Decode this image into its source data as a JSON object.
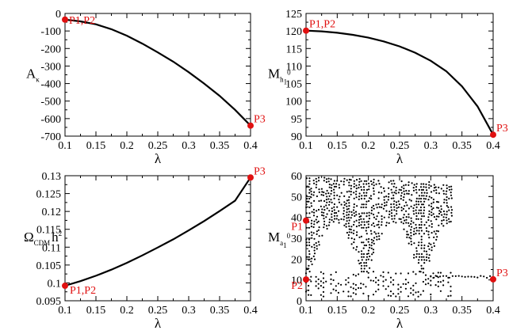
{
  "chart_data": [
    {
      "type": "line",
      "xlabel": "λ",
      "ylabel": "A",
      "ylabel_sub": "κ",
      "xlim": [
        0.1,
        0.4
      ],
      "ylim": [
        -700,
        0
      ],
      "xticks": [
        "0.1",
        "0.15",
        "0.2",
        "0.25",
        "0.3",
        "0.35",
        "0.4"
      ],
      "yticks": [
        "0",
        "-100",
        "-200",
        "-300",
        "-400",
        "-500",
        "-600",
        "-700"
      ],
      "ytick_values": [
        0,
        -100,
        -200,
        -300,
        -400,
        -500,
        -600,
        -700
      ],
      "series": [
        {
          "x": [
            0.1,
            0.125,
            0.15,
            0.175,
            0.2,
            0.225,
            0.25,
            0.275,
            0.3,
            0.325,
            0.35,
            0.375,
            0.4
          ],
          "y": [
            -35,
            -45,
            -62,
            -90,
            -127,
            -172,
            -222,
            -275,
            -335,
            -400,
            -470,
            -550,
            -640
          ]
        }
      ],
      "points": [
        {
          "label": "P1,P2",
          "x": 0.1,
          "y": -35,
          "label_pos": "right"
        },
        {
          "label": "P3",
          "x": 0.4,
          "y": -640,
          "label_pos": "above-right"
        }
      ]
    },
    {
      "type": "line",
      "xlabel": "λ",
      "ylabel": "M",
      "ylabel_sub": "h",
      "ylabel_sub2": "1",
      "ylabel_sup": "0",
      "xlim": [
        0.1,
        0.4
      ],
      "ylim": [
        90,
        125
      ],
      "xticks": [
        "0.1",
        "0.15",
        "0.2",
        "0.25",
        "0.3",
        "0.35",
        "0.4"
      ],
      "yticks": [
        "90",
        "95",
        "100",
        "105",
        "110",
        "115",
        "120",
        "125"
      ],
      "ytick_values": [
        90,
        95,
        100,
        105,
        110,
        115,
        120,
        125
      ],
      "series": [
        {
          "x": [
            0.1,
            0.125,
            0.15,
            0.175,
            0.2,
            0.225,
            0.25,
            0.275,
            0.3,
            0.325,
            0.35,
            0.375,
            0.4
          ],
          "y": [
            120.1,
            119.9,
            119.5,
            118.9,
            118.1,
            117.0,
            115.6,
            113.8,
            111.5,
            108.5,
            104.2,
            98.5,
            90.4
          ]
        }
      ],
      "points": [
        {
          "label": "P1,P2",
          "x": 0.1,
          "y": 120.1,
          "label_pos": "above-right"
        },
        {
          "label": "P3",
          "x": 0.4,
          "y": 90.4,
          "label_pos": "above-right"
        }
      ]
    },
    {
      "type": "line",
      "xlabel": "λ",
      "ylabel": "Ω",
      "ylabel_sub": "CDM",
      "ylabel_tail": "h",
      "ylabel_sup": "2",
      "xlim": [
        0.1,
        0.4
      ],
      "ylim": [
        0.095,
        0.13
      ],
      "xticks": [
        "0.1",
        "0.15",
        "0.2",
        "0.25",
        "0.3",
        "0.35",
        "0.4"
      ],
      "yticks": [
        "0.095",
        "0.1",
        "0.105",
        "0.11",
        "0.115",
        "0.12",
        "0.125",
        "0.13"
      ],
      "ytick_values": [
        0.095,
        0.1,
        0.105,
        0.11,
        0.115,
        0.12,
        0.125,
        0.13
      ],
      "series": [
        {
          "x": [
            0.1,
            0.125,
            0.15,
            0.175,
            0.2,
            0.225,
            0.25,
            0.275,
            0.3,
            0.325,
            0.35,
            0.375,
            0.4
          ],
          "y": [
            0.0992,
            0.1005,
            0.102,
            0.1037,
            0.1056,
            0.1077,
            0.1099,
            0.1122,
            0.1147,
            0.1173,
            0.1201,
            0.123,
            0.1295
          ]
        }
      ],
      "points": [
        {
          "label": "P1,P2",
          "x": 0.1,
          "y": 0.0992,
          "label_pos": "below-right"
        },
        {
          "label": "P3",
          "x": 0.4,
          "y": 0.1295,
          "label_pos": "above-right"
        }
      ]
    },
    {
      "type": "scatter",
      "xlabel": "λ",
      "ylabel": "M",
      "ylabel_sub": "a",
      "ylabel_sub2": "1",
      "ylabel_sup": "0",
      "xlim": [
        0.1,
        0.4
      ],
      "ylim": [
        0,
        60
      ],
      "xticks": [
        "0.1",
        "0.15",
        "0.2",
        "0.25",
        "0.3",
        "0.35",
        "0.4"
      ],
      "yticks": [
        "0",
        "10",
        "20",
        "30",
        "40",
        "50",
        "60"
      ],
      "ytick_values": [
        0,
        10,
        20,
        30,
        40,
        50,
        60
      ],
      "points": [
        {
          "label": "P1",
          "x": 0.1,
          "y": 38.5,
          "label_pos": "below-left"
        },
        {
          "label": "P2",
          "x": 0.1,
          "y": 10.2,
          "label_pos": "below-left"
        },
        {
          "label": "P3",
          "x": 0.4,
          "y": 10.3,
          "label_pos": "above-right"
        }
      ]
    }
  ]
}
